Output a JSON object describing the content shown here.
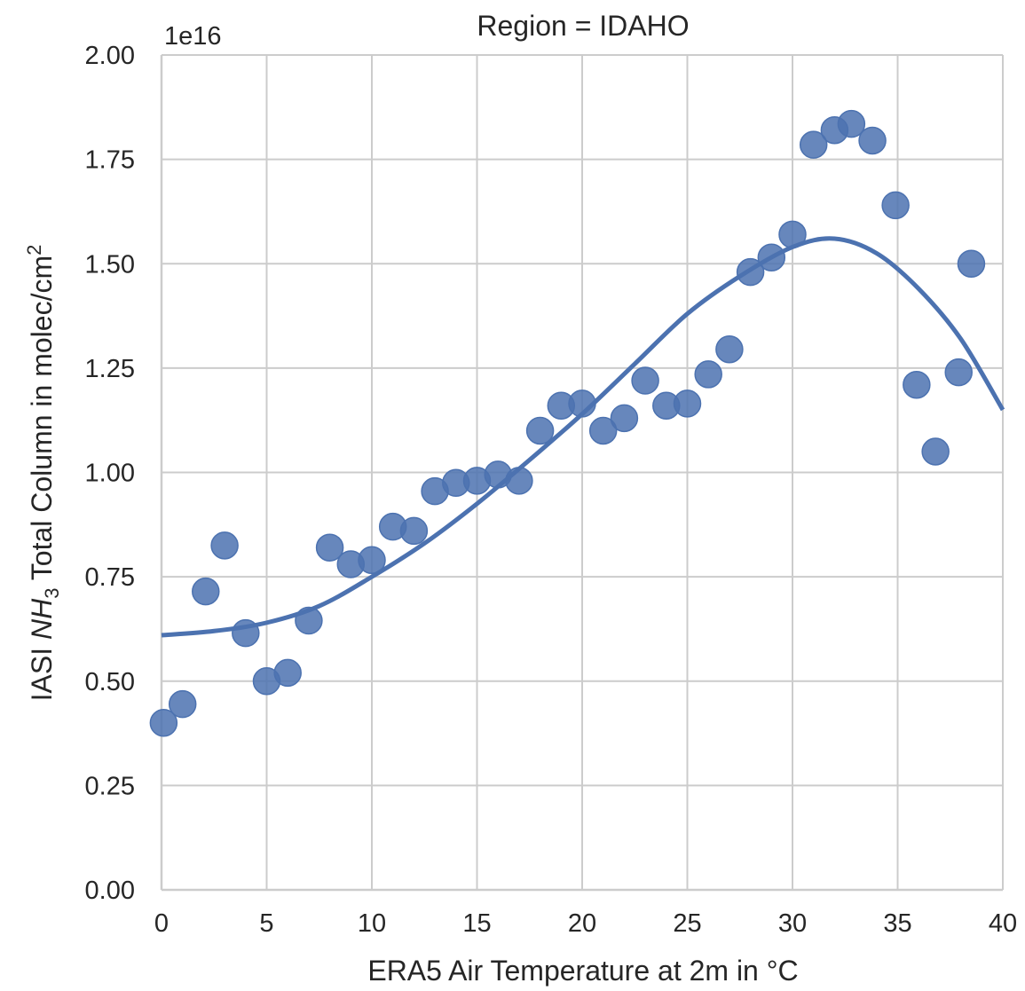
{
  "chart_data": {
    "type": "scatter",
    "title": "Region = IDAHO",
    "xlabel": "ERA5 Air Temperature at 2m in °C",
    "ylabel_parts": [
      "IASI ",
      "NH",
      "3",
      " Total Column in molec/cm",
      "2"
    ],
    "offset_text": "1e16",
    "xlim": [
      0,
      40
    ],
    "ylim": [
      0,
      2.0
    ],
    "xticks": [
      0,
      5,
      10,
      15,
      20,
      25,
      30,
      35,
      40
    ],
    "xtick_labels": [
      "0",
      "5",
      "10",
      "15",
      "20",
      "25",
      "30",
      "35",
      "40"
    ],
    "yticks": [
      0,
      0.25,
      0.5,
      0.75,
      1.0,
      1.25,
      1.5,
      1.75,
      2.0
    ],
    "ytick_labels": [
      "0.00",
      "0.25",
      "0.50",
      "0.75",
      "1.00",
      "1.25",
      "1.50",
      "1.75",
      "2.00"
    ],
    "grid": true,
    "color": "#4c72b0",
    "points": [
      {
        "x": 0.1,
        "y": 0.4
      },
      {
        "x": 1.0,
        "y": 0.445
      },
      {
        "x": 2.1,
        "y": 0.715
      },
      {
        "x": 3.0,
        "y": 0.825
      },
      {
        "x": 4.0,
        "y": 0.615
      },
      {
        "x": 5.0,
        "y": 0.5
      },
      {
        "x": 6.0,
        "y": 0.52
      },
      {
        "x": 7.0,
        "y": 0.645
      },
      {
        "x": 8.0,
        "y": 0.82
      },
      {
        "x": 9.0,
        "y": 0.78
      },
      {
        "x": 10.0,
        "y": 0.79
      },
      {
        "x": 11.0,
        "y": 0.87
      },
      {
        "x": 12.0,
        "y": 0.86
      },
      {
        "x": 13.0,
        "y": 0.955
      },
      {
        "x": 14.0,
        "y": 0.975
      },
      {
        "x": 15.0,
        "y": 0.98
      },
      {
        "x": 16.0,
        "y": 0.995
      },
      {
        "x": 17.0,
        "y": 0.98
      },
      {
        "x": 18.0,
        "y": 1.1
      },
      {
        "x": 19.0,
        "y": 1.16
      },
      {
        "x": 20.0,
        "y": 1.165
      },
      {
        "x": 21.0,
        "y": 1.1
      },
      {
        "x": 22.0,
        "y": 1.13
      },
      {
        "x": 23.0,
        "y": 1.22
      },
      {
        "x": 24.0,
        "y": 1.16
      },
      {
        "x": 25.0,
        "y": 1.165
      },
      {
        "x": 26.0,
        "y": 1.235
      },
      {
        "x": 27.0,
        "y": 1.295
      },
      {
        "x": 28.0,
        "y": 1.48
      },
      {
        "x": 29.0,
        "y": 1.515
      },
      {
        "x": 30.0,
        "y": 1.57
      },
      {
        "x": 31.0,
        "y": 1.785
      },
      {
        "x": 32.0,
        "y": 1.82
      },
      {
        "x": 32.8,
        "y": 1.835
      },
      {
        "x": 33.8,
        "y": 1.795
      },
      {
        "x": 34.9,
        "y": 1.64
      },
      {
        "x": 35.9,
        "y": 1.21
      },
      {
        "x": 36.8,
        "y": 1.05
      },
      {
        "x": 37.9,
        "y": 1.24
      },
      {
        "x": 38.5,
        "y": 1.5
      }
    ],
    "fit_curve": {
      "x": [
        0,
        2.5,
        5,
        7.5,
        10,
        12.5,
        15,
        17.5,
        20,
        22.5,
        25,
        27.5,
        30,
        32,
        34,
        36,
        38,
        40
      ],
      "y": [
        0.61,
        0.62,
        0.64,
        0.68,
        0.75,
        0.83,
        0.925,
        1.03,
        1.14,
        1.26,
        1.38,
        1.47,
        1.54,
        1.56,
        1.525,
        1.44,
        1.32,
        1.15
      ]
    }
  }
}
